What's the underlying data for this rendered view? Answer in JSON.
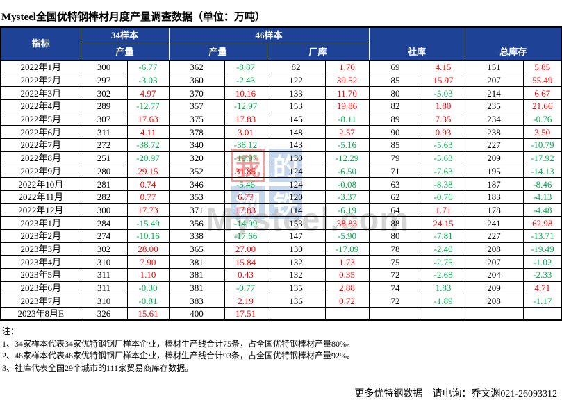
{
  "title": "Mysteel全国优特钢棒材月度产量调查数据（单位：万吨）",
  "colors": {
    "increase_red": "#FF0000",
    "decrease_green": "#00B050",
    "header_bg": "#1E4296",
    "header_text": "#FFFFFF"
  },
  "table": {
    "header": {
      "indicator": "指标",
      "sample34": "34样本",
      "sample46": "46样本",
      "production34": "产量",
      "production46": "产量",
      "factory": "厂库",
      "social": "社库",
      "total": "总库存"
    },
    "rows": [
      {
        "month": "2022年1月",
        "v": [
          "300",
          "-6.77",
          "362",
          "-8.87",
          "82",
          "1.70",
          "69",
          "4.15",
          "151",
          "5.85"
        ],
        "c": [
          "g",
          "g",
          "r",
          "r",
          "r"
        ]
      },
      {
        "month": "2022年2月",
        "v": [
          "297",
          "-3.03",
          "360",
          "-2.43",
          "122",
          "39.52",
          "85",
          "15.97",
          "207",
          "55.49"
        ],
        "c": [
          "g",
          "g",
          "r",
          "r",
          "r"
        ]
      },
      {
        "month": "2022年3月",
        "v": [
          "302",
          "4.97",
          "370",
          "10.16",
          "133",
          "11.70",
          "80",
          "-5.03",
          "214",
          "6.67"
        ],
        "c": [
          "r",
          "r",
          "r",
          "g",
          "r"
        ]
      },
      {
        "month": "2022年4月",
        "v": [
          "289",
          "-12.77",
          "357",
          "-12.97",
          "153",
          "19.86",
          "82",
          "1.80",
          "235",
          "21.66"
        ],
        "c": [
          "g",
          "g",
          "r",
          "r",
          "r"
        ]
      },
      {
        "month": "2022年5月",
        "v": [
          "307",
          "17.63",
          "375",
          "17.83",
          "145",
          "-8.11",
          "89",
          "7.35",
          "234",
          "-0.76"
        ],
        "c": [
          "r",
          "r",
          "g",
          "r",
          "g"
        ]
      },
      {
        "month": "2022年6月",
        "v": [
          "311",
          "4.11",
          "378",
          "3.01",
          "148",
          "2.57",
          "90",
          "0.93",
          "238",
          "3.50"
        ],
        "c": [
          "r",
          "r",
          "r",
          "r",
          "r"
        ]
      },
      {
        "month": "2022年7月",
        "v": [
          "272",
          "-38.72",
          "340",
          "-38.12",
          "143",
          "-5.16",
          "85",
          "-5.63",
          "227",
          "-10.79"
        ],
        "c": [
          "g",
          "g",
          "g",
          "g",
          "g"
        ]
      },
      {
        "month": "2022年8月",
        "v": [
          "251",
          "-20.97",
          "320",
          "-19.97",
          "130",
          "-12.29",
          "79",
          "-5.63",
          "209",
          "-17.92"
        ],
        "c": [
          "g",
          "g",
          "g",
          "g",
          "g"
        ]
      },
      {
        "month": "2022年9月",
        "v": [
          "280",
          "29.15",
          "352",
          "31.85",
          "124",
          "-6.50",
          "71",
          "-7.63",
          "195",
          "-14.13"
        ],
        "c": [
          "r",
          "r",
          "g",
          "g",
          "g"
        ]
      },
      {
        "month": "2022年10月",
        "v": [
          "281",
          "0.74",
          "346",
          "-5.46",
          "124",
          "-0.08",
          "63",
          "-8.38",
          "187",
          "-8.46"
        ],
        "c": [
          "r",
          "g",
          "g",
          "g",
          "g"
        ]
      },
      {
        "month": "2022年11月",
        "v": [
          "282",
          "0.77",
          "353",
          "6.77",
          "120",
          "-3.37",
          "62",
          "-0.76",
          "183",
          "-4.13"
        ],
        "c": [
          "r",
          "r",
          "g",
          "g",
          "g"
        ]
      },
      {
        "month": "2022年12月",
        "v": [
          "300",
          "17.73",
          "371",
          "17.83",
          "114",
          "-6.19",
          "64",
          "1.71",
          "178",
          "-4.48"
        ],
        "c": [
          "r",
          "r",
          "g",
          "r",
          "g"
        ]
      },
      {
        "month": "2023年1月",
        "v": [
          "284",
          "-15.49",
          "356",
          "-14.99",
          "153",
          "38.83",
          "88",
          "24.15",
          "241",
          "62.98"
        ],
        "c": [
          "g",
          "g",
          "r",
          "r",
          "r"
        ]
      },
      {
        "month": "2023年2月",
        "v": [
          "274",
          "-10.16",
          "338",
          "-17.66",
          "147",
          "-5.90",
          "80",
          "-7.81",
          "227",
          "-13.71"
        ],
        "c": [
          "g",
          "g",
          "g",
          "g",
          "g"
        ]
      },
      {
        "month": "2023年3月",
        "v": [
          "302",
          "28.00",
          "365",
          "27.00",
          "130",
          "-17.09",
          "78",
          "-2.40",
          "208",
          "-19.49"
        ],
        "c": [
          "r",
          "r",
          "g",
          "g",
          "g"
        ]
      },
      {
        "month": "2023年4月",
        "v": [
          "310",
          "7.90",
          "381",
          "15.84",
          "132",
          "1.73",
          "75",
          "-2.75",
          "207",
          "-1.02"
        ],
        "c": [
          "r",
          "r",
          "r",
          "g",
          "g"
        ]
      },
      {
        "month": "2023年5月",
        "v": [
          "311",
          "1.10",
          "381",
          "0.43",
          "132",
          "0.35",
          "72",
          "-2.68",
          "204",
          "-2.33"
        ],
        "c": [
          "r",
          "r",
          "r",
          "g",
          "g"
        ]
      },
      {
        "month": "2023年6月",
        "v": [
          "311",
          "-0.30",
          "381",
          "-0.77",
          "135",
          "2.88",
          "74",
          "1.83",
          "209",
          "4.71"
        ],
        "c": [
          "g",
          "g",
          "r",
          "g",
          "r"
        ]
      },
      {
        "month": "2023年7月",
        "v": [
          "310",
          "-0.81",
          "383",
          "2.19",
          "136",
          "0.72",
          "72",
          "-1.89",
          "208",
          "-1.17"
        ],
        "c": [
          "g",
          "r",
          "r",
          "g",
          "g"
        ]
      },
      {
        "month": "2023年8月E",
        "v": [
          "326",
          "15.61",
          "400",
          "17.51",
          "",
          "",
          "",
          "",
          "",
          ""
        ],
        "c": [
          "r",
          "r",
          "",
          "",
          ""
        ]
      }
    ]
  },
  "notes": [
    "注：",
    "1、34家样本代表34家优特钢钢厂样本企业，棒材生产线合计75条，占全国优特钢棒材产量80%。",
    "2、46家样本代表46家优特钢钢厂样本企业，棒材生产线合计93条，占全国优特钢棒材产量92%。",
    "3、社库代表全国29个城市的111家贸易商库存数据。"
  ],
  "footer": {
    "contact": "更多优特钢数据　请电询：乔文渊021-26093312"
  },
  "watermark": {
    "blocks": [
      "我",
      "的",
      "钢",
      "铁"
    ],
    "text": "Mysteel.com"
  }
}
